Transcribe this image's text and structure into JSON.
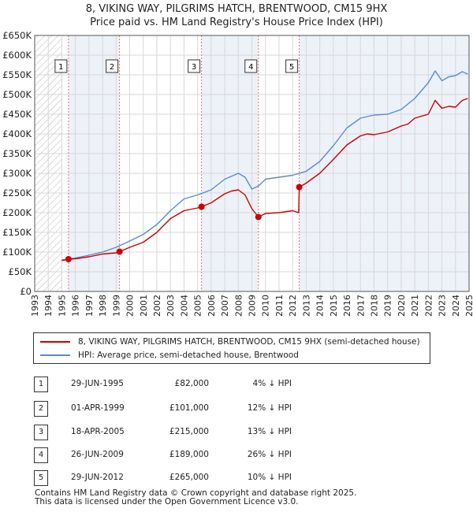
{
  "title_line1": "8, VIKING WAY, PILGRIMS HATCH, BRENTWOOD, CM15 9HX",
  "title_line2": "Price paid vs. HM Land Registry's House Price Index (HPI)",
  "legend": {
    "property": "8, VIKING WAY, PILGRIMS HATCH, BRENTWOOD, CM15 9HX (semi-detached house)",
    "hpi": "HPI: Average price, semi-detached house, Brentwood"
  },
  "colors": {
    "property": "#cc0000",
    "hpi": "#5b8ccc",
    "marker_line": "#e87070",
    "shade": "#dfe6f2"
  },
  "sales": [
    {
      "num": "1",
      "date": "29-JUN-1995",
      "price": "£82,000",
      "hpi": "4% ↓ HPI"
    },
    {
      "num": "2",
      "date": "01-APR-1999",
      "price": "£101,000",
      "hpi": "12% ↓ HPI"
    },
    {
      "num": "3",
      "date": "18-APR-2005",
      "price": "£215,000",
      "hpi": "13% ↓ HPI"
    },
    {
      "num": "4",
      "date": "26-JUN-2009",
      "price": "£189,000",
      "hpi": "26% ↓ HPI"
    },
    {
      "num": "5",
      "date": "29-JUN-2012",
      "price": "£265,000",
      "hpi": "10% ↓ HPI"
    }
  ],
  "footer_line1": "Contains HM Land Registry data © Crown copyright and database right 2025.",
  "footer_line2": "This data is licensed under the Open Government Licence v3.0.",
  "chart_data": {
    "type": "line",
    "xlim": [
      1993,
      2025
    ],
    "ylim": [
      0,
      650000
    ],
    "yticks": [
      {
        "value": 0,
        "label": "£0"
      },
      {
        "value": 50000,
        "label": "£50K"
      },
      {
        "value": 100000,
        "label": "£100K"
      },
      {
        "value": 150000,
        "label": "£150K"
      },
      {
        "value": 200000,
        "label": "£200K"
      },
      {
        "value": 250000,
        "label": "£250K"
      },
      {
        "value": 300000,
        "label": "£300K"
      },
      {
        "value": 350000,
        "label": "£350K"
      },
      {
        "value": 400000,
        "label": "£400K"
      },
      {
        "value": 450000,
        "label": "£450K"
      },
      {
        "value": 500000,
        "label": "£500K"
      },
      {
        "value": 550000,
        "label": "£550K"
      },
      {
        "value": 600000,
        "label": "£600K"
      },
      {
        "value": 650000,
        "label": "£650K"
      }
    ],
    "xticks": [
      "1993",
      "1994",
      "1995",
      "1996",
      "1997",
      "1998",
      "1999",
      "2000",
      "2001",
      "2002",
      "2003",
      "2004",
      "2005",
      "2006",
      "2007",
      "2008",
      "2009",
      "2010",
      "2011",
      "2012",
      "2013",
      "2014",
      "2015",
      "2016",
      "2017",
      "2018",
      "2019",
      "2020",
      "2021",
      "2022",
      "2023",
      "2024",
      "2025"
    ],
    "shaded_before": 1995.0,
    "grid": true,
    "legend_position": "bottom",
    "sale_points": [
      {
        "label": "1",
        "x": 1995.49,
        "y": 82000
      },
      {
        "label": "2",
        "x": 1999.25,
        "y": 101000
      },
      {
        "label": "3",
        "x": 2005.29,
        "y": 215000
      },
      {
        "label": "4",
        "x": 2009.48,
        "y": 189000
      },
      {
        "label": "5",
        "x": 2012.49,
        "y": 265000
      }
    ],
    "series": [
      {
        "name": "8, VIKING WAY, PILGRIMS HATCH, BRENTWOOD, CM15 9HX (semi-detached house)",
        "x": [
          1995.0,
          1995.49,
          1996.0,
          1997.0,
          1998.0,
          1999.0,
          1999.25,
          2000.0,
          2001.0,
          2002.0,
          2003.0,
          2004.0,
          2005.0,
          2005.29,
          2006.0,
          2007.0,
          2007.5,
          2008.0,
          2008.5,
          2009.0,
          2009.48,
          2010.0,
          2011.0,
          2012.0,
          2012.45,
          2012.49,
          2013.0,
          2014.0,
          2015.0,
          2016.0,
          2017.0,
          2017.5,
          2018.0,
          2019.0,
          2020.0,
          2020.5,
          2021.0,
          2022.0,
          2022.5,
          2023.0,
          2023.5,
          2024.0,
          2024.5,
          2024.9
        ],
        "y": [
          78000,
          82000,
          83000,
          88000,
          95000,
          98000,
          101000,
          112000,
          125000,
          150000,
          185000,
          205000,
          212000,
          215000,
          225000,
          248000,
          255000,
          258000,
          245000,
          210000,
          189000,
          198000,
          200000,
          205000,
          200000,
          265000,
          275000,
          300000,
          335000,
          372000,
          395000,
          400000,
          398000,
          405000,
          420000,
          425000,
          440000,
          450000,
          485000,
          465000,
          470000,
          468000,
          485000,
          490000
        ]
      },
      {
        "name": "HPI: Average price, semi-detached house, Brentwood",
        "x": [
          1995.0,
          1996.0,
          1997.0,
          1998.0,
          1999.0,
          2000.0,
          2001.0,
          2002.0,
          2003.0,
          2004.0,
          2005.0,
          2006.0,
          2007.0,
          2008.0,
          2008.5,
          2009.0,
          2009.5,
          2010.0,
          2011.0,
          2012.0,
          2013.0,
          2014.0,
          2015.0,
          2016.0,
          2017.0,
          2018.0,
          2019.0,
          2020.0,
          2021.0,
          2022.0,
          2022.5,
          2023.0,
          2023.5,
          2024.0,
          2024.5,
          2024.9
        ],
        "y": [
          80000,
          85000,
          92000,
          100000,
          112000,
          128000,
          145000,
          170000,
          205000,
          235000,
          245000,
          258000,
          285000,
          300000,
          290000,
          260000,
          268000,
          285000,
          290000,
          295000,
          305000,
          330000,
          370000,
          415000,
          440000,
          448000,
          450000,
          462000,
          490000,
          530000,
          560000,
          535000,
          545000,
          548000,
          558000,
          552000
        ]
      }
    ]
  }
}
